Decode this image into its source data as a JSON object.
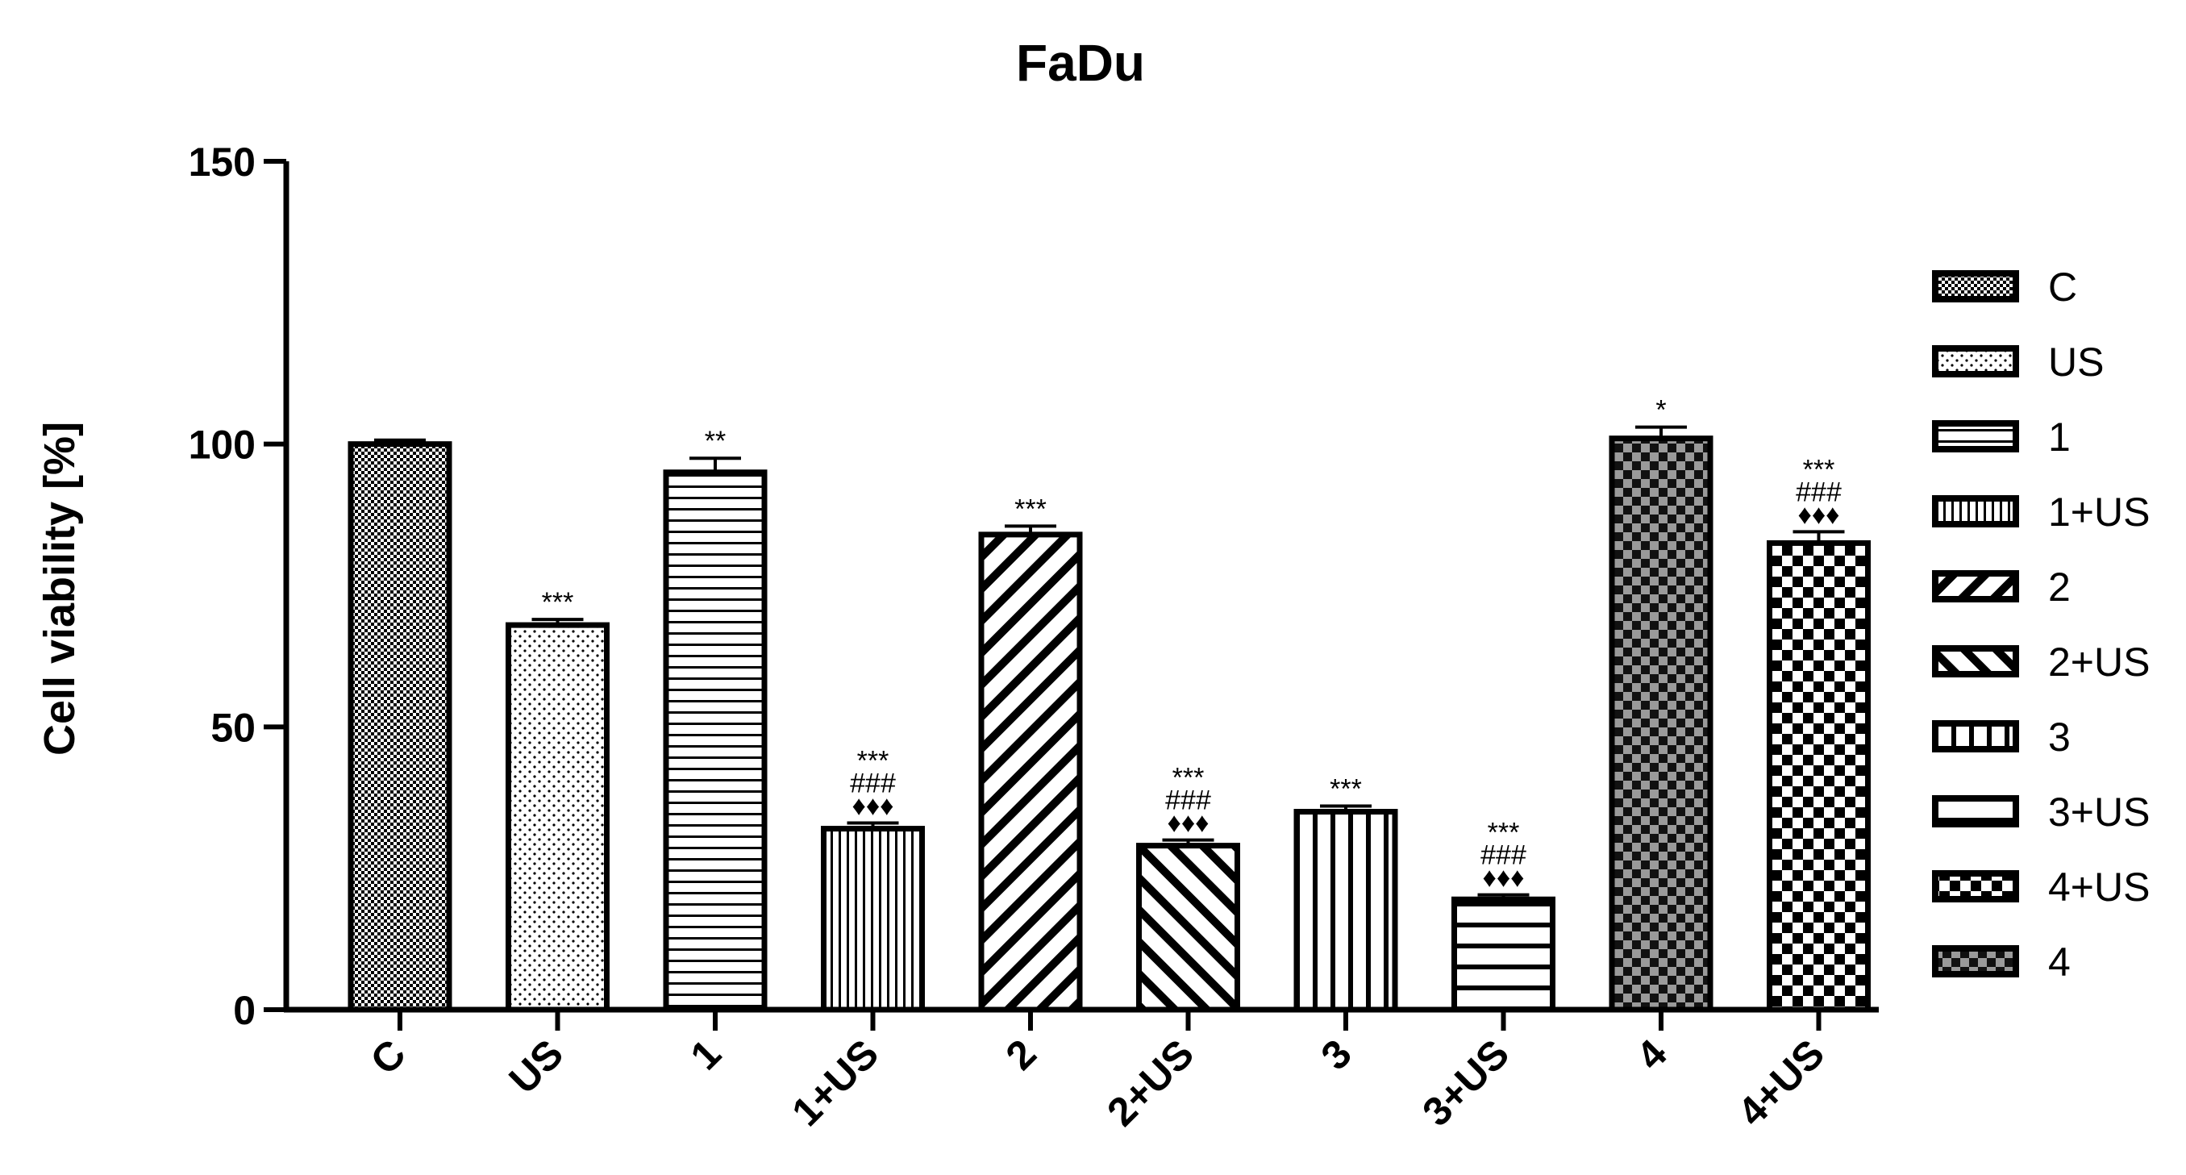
{
  "chart_data": {
    "type": "bar",
    "title": "FaDu",
    "ylabel": "Cell viability [%]",
    "xlabel": "",
    "ylim": [
      0,
      150
    ],
    "yticks": [
      0,
      50,
      100,
      150
    ],
    "categories": [
      "C",
      "US",
      "1",
      "1+US",
      "2",
      "2+US",
      "3",
      "3+US",
      "4",
      "4+US"
    ],
    "values": [
      100,
      68,
      95,
      32,
      84,
      29,
      35,
      19.5,
      101,
      82.5
    ],
    "errors": [
      0.7,
      1,
      2.5,
      1,
      1.5,
      1,
      1,
      0.8,
      2,
      2
    ],
    "patterns": [
      "checker-fine",
      "dots",
      "hlines",
      "vlines-fine",
      "diag-right",
      "diag-left",
      "vlines",
      "hlines-wide",
      "checker-gray",
      "checker-large"
    ],
    "significance": [
      [],
      [
        "***"
      ],
      [
        "**"
      ],
      [
        "***",
        "###",
        "♦♦♦"
      ],
      [
        "***"
      ],
      [
        "***",
        "###",
        "♦♦♦"
      ],
      [
        "***"
      ],
      [
        "***",
        "###",
        "♦♦♦"
      ],
      [
        "*"
      ],
      [
        "***",
        "###",
        "♦♦♦"
      ]
    ],
    "legend": {
      "placement": "right",
      "entries": [
        "C",
        "US",
        "1",
        "1+US",
        "2",
        "2+US",
        "3",
        "3+US",
        "4+US",
        "4"
      ]
    },
    "grid": false
  }
}
